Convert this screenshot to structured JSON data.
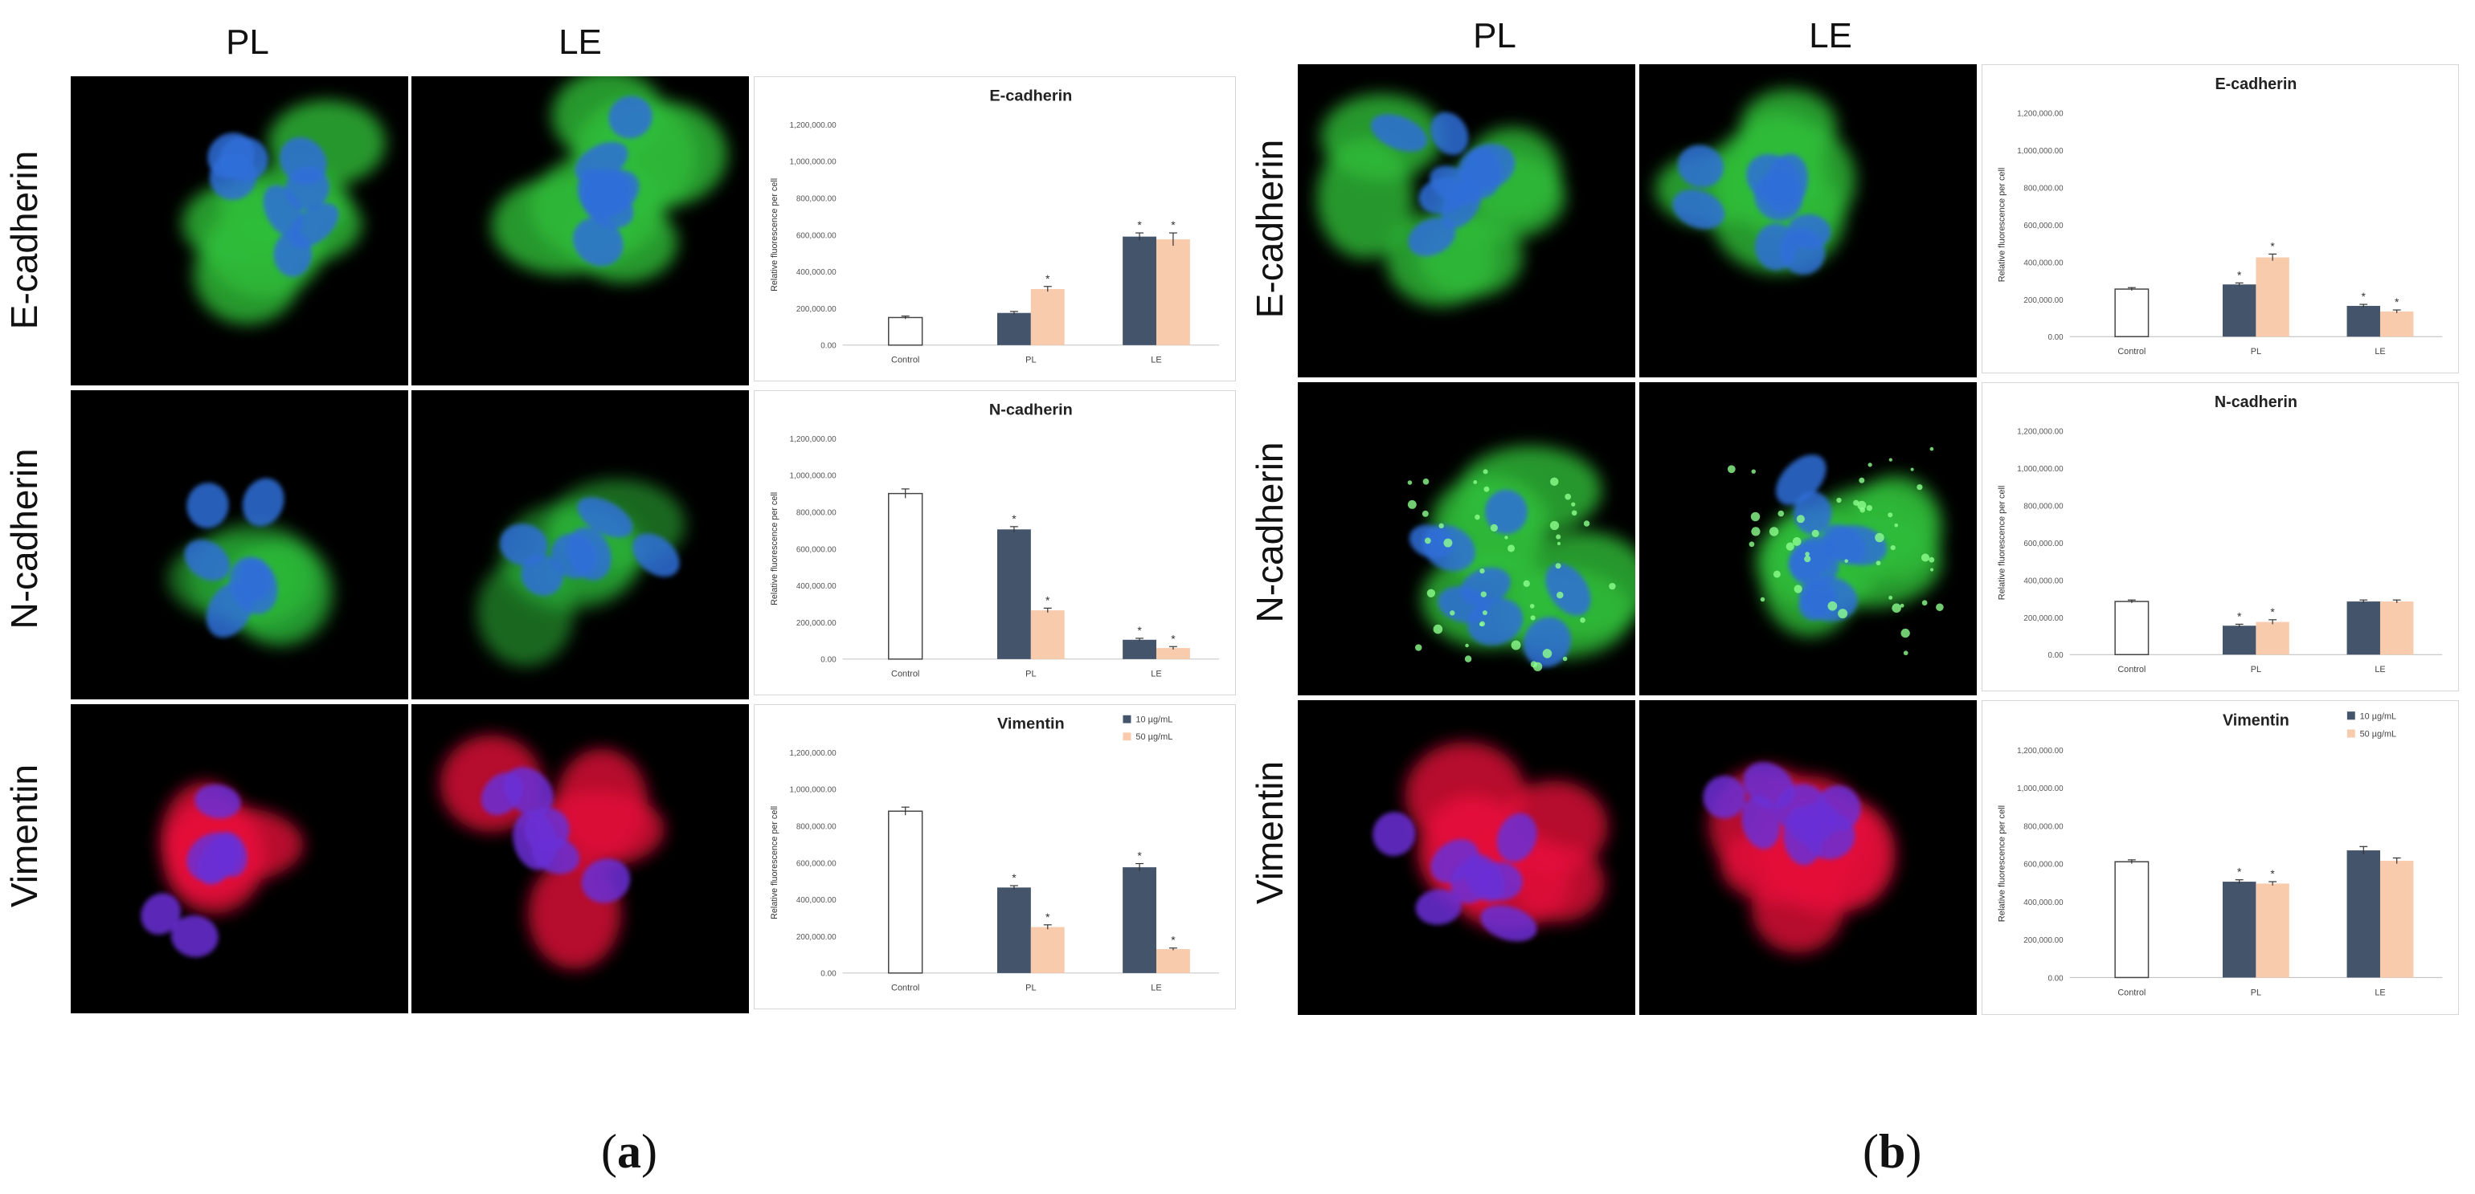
{
  "panels": [
    {
      "id": "a",
      "label_open": "(",
      "label_letter": "a",
      "label_close": ")",
      "column_headers": [
        "PL",
        "LE"
      ],
      "rows": [
        {
          "row_label": "E-cadherin",
          "stain": "green",
          "chart": {
            "title": "E-cadherin",
            "ylabel": "Relative fluorescence per cell",
            "yticks": [
              "0.00",
              "200,000.00",
              "400,000.00",
              "600,000.00",
              "800,000.00",
              "1,000,000.00",
              "1,200,000.00"
            ],
            "categories": [
              "Control",
              "PL",
              "LE"
            ],
            "series": [
              {
                "values": [
                  150000,
                  175000,
                  590000
                ],
                "errors": [
                  8000,
                  8000,
                  20000
                ],
                "sig": [
                  "",
                  "",
                  "*"
                ]
              },
              {
                "values": [
                  null,
                  305000,
                  575000
                ],
                "errors": [
                  null,
                  14000,
                  35000
                ],
                "sig": [
                  "",
                  "*",
                  "*"
                ]
              }
            ]
          }
        },
        {
          "row_label": "N-cadherin",
          "stain": "green-sparse",
          "chart": {
            "title": "N-cadherin",
            "ylabel": "Relative fluorescence per cell",
            "yticks": [
              "0.00",
              "200,000.00",
              "400,000.00",
              "600,000.00",
              "800,000.00",
              "1,000,000.00",
              "1,200,000.00"
            ],
            "categories": [
              "Control",
              "PL",
              "LE"
            ],
            "series": [
              {
                "values": [
                  900000,
                  705000,
                  105000
                ],
                "errors": [
                  25000,
                  15000,
                  8000
                ],
                "sig": [
                  "",
                  "*",
                  "*"
                ]
              },
              {
                "values": [
                  null,
                  265000,
                  60000
                ],
                "errors": [
                  null,
                  12000,
                  8000
                ],
                "sig": [
                  "",
                  "*",
                  "*"
                ]
              }
            ]
          }
        },
        {
          "row_label": "Vimentin",
          "stain": "red",
          "chart": {
            "title": "Vimentin",
            "ylabel": "Relative fluorescence per cell",
            "legend": [
              "10 µg/mL",
              "50 µg/mL"
            ],
            "yticks": [
              "0.00",
              "200,000.00",
              "400,000.00",
              "600,000.00",
              "800,000.00",
              "1,000,000.00",
              "1,200,000.00"
            ],
            "categories": [
              "Control",
              "PL",
              "LE"
            ],
            "series": [
              {
                "values": [
                  880000,
                  465000,
                  575000
                ],
                "errors": [
                  22000,
                  10000,
                  20000
                ],
                "sig": [
                  "",
                  "*",
                  "*"
                ]
              },
              {
                "values": [
                  null,
                  250000,
                  130000
                ],
                "errors": [
                  null,
                  12000,
                  6000
                ],
                "sig": [
                  "",
                  "*",
                  "*"
                ]
              }
            ]
          }
        }
      ]
    },
    {
      "id": "b",
      "label_open": "(",
      "label_letter": "b",
      "label_close": ")",
      "column_headers": [
        "PL",
        "LE"
      ],
      "rows": [
        {
          "row_label": "E-cadherin",
          "stain": "green",
          "chart": {
            "title": "E-cadherin",
            "ylabel": "Relative fluorescence per cell",
            "yticks": [
              "0.00",
              "200,000.00",
              "400,000.00",
              "600,000.00",
              "800,000.00",
              "1,000,000.00",
              "1,200,000.00"
            ],
            "categories": [
              "Control",
              "PL",
              "LE"
            ],
            "series": [
              {
                "values": [
                  255000,
                  280000,
                  165000
                ],
                "errors": [
                  8000,
                  8000,
                  8000
                ],
                "sig": [
                  "",
                  "*",
                  "*"
                ]
              },
              {
                "values": [
                  null,
                  425000,
                  135000
                ],
                "errors": [
                  null,
                  18000,
                  8000
                ],
                "sig": [
                  "",
                  "*",
                  "*"
                ]
              }
            ]
          }
        },
        {
          "row_label": "N-cadherin",
          "stain": "green-dots",
          "chart": {
            "title": "N-cadherin",
            "ylabel": "Relative fluorescence per cell",
            "yticks": [
              "0.00",
              "200,000.00",
              "400,000.00",
              "600,000.00",
              "800,000.00",
              "1,000,000.00",
              "1,200,000.00"
            ],
            "categories": [
              "Control",
              "PL",
              "LE"
            ],
            "series": [
              {
                "values": [
                  285000,
                  155000,
                  285000
                ],
                "errors": [
                  8000,
                  8000,
                  8000
                ],
                "sig": [
                  "",
                  "*",
                  ""
                ]
              },
              {
                "values": [
                  null,
                  175000,
                  285000
                ],
                "errors": [
                  null,
                  12000,
                  8000
                ],
                "sig": [
                  "",
                  "*",
                  ""
                ]
              }
            ]
          }
        },
        {
          "row_label": "Vimentin",
          "stain": "red-large",
          "chart": {
            "title": "Vimentin",
            "ylabel": "Relative fluorescence per cell",
            "legend": [
              "10 µg/mL",
              "50 µg/mL"
            ],
            "yticks": [
              "0.00",
              "200,000.00",
              "400,000.00",
              "600,000.00",
              "800,000.00",
              "1,000,000.00",
              "1,200,000.00"
            ],
            "categories": [
              "Control",
              "PL",
              "LE"
            ],
            "series": [
              {
                "values": [
                  610000,
                  505000,
                  670000
                ],
                "errors": [
                  10000,
                  10000,
                  20000
                ],
                "sig": [
                  "",
                  "*",
                  ""
                ]
              },
              {
                "values": [
                  null,
                  495000,
                  615000
                ],
                "errors": [
                  null,
                  10000,
                  15000
                ],
                "sig": [
                  "",
                  "*",
                  ""
                ]
              }
            ]
          }
        }
      ]
    }
  ],
  "colors": {
    "series_dark": "#44546a",
    "series_light": "#f8cbad",
    "control_fill": "#ffffff",
    "control_stroke": "#444444"
  }
}
